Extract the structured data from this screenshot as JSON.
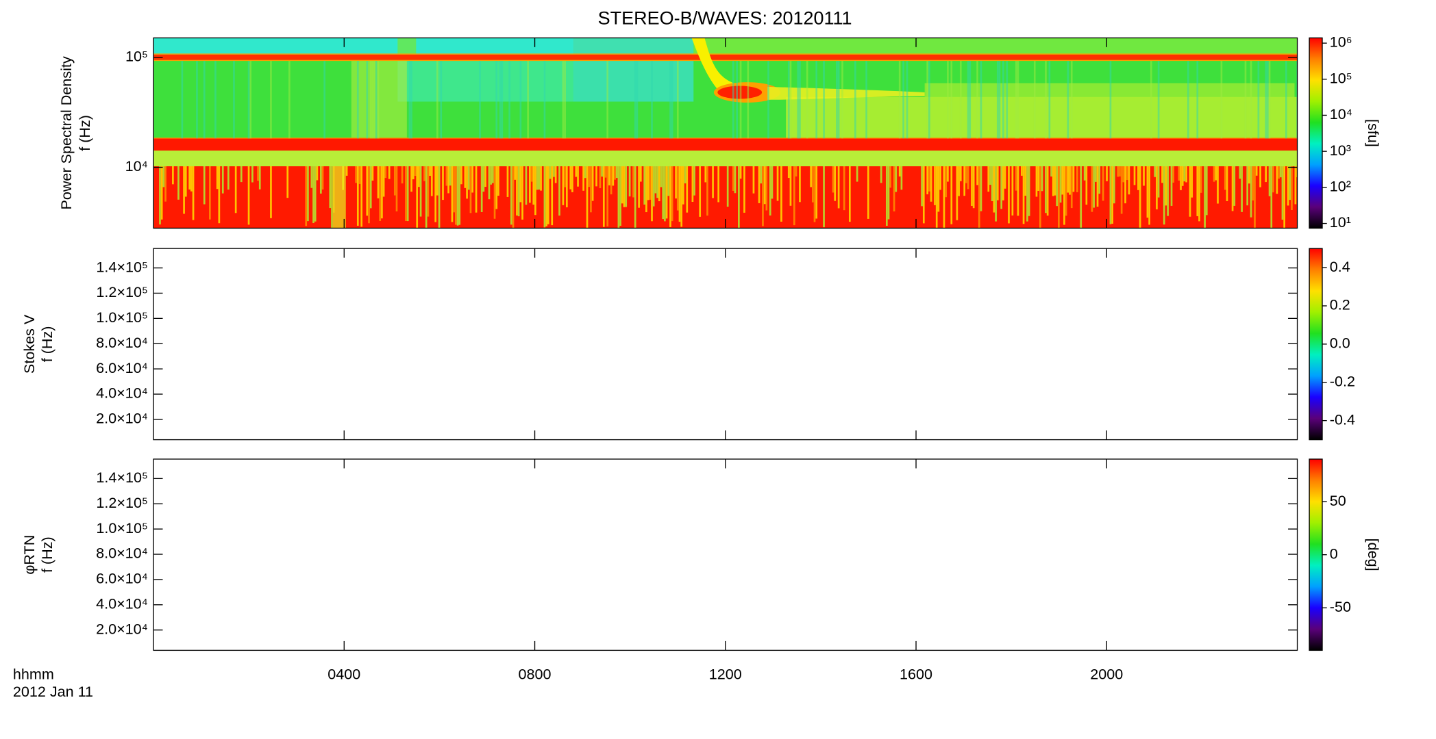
{
  "title": "STEREO-B/WAVES: 20120111",
  "time_label": "hhmm",
  "date_label": "2012 Jan 11",
  "time_axis": {
    "xlim": [
      0,
      24
    ],
    "xticks": [
      {
        "value": 4,
        "label": "0400"
      },
      {
        "value": 8,
        "label": "0800"
      },
      {
        "value": 12,
        "label": "1200"
      },
      {
        "value": 16,
        "label": "1600"
      },
      {
        "value": 20,
        "label": "2000"
      }
    ]
  },
  "colormap": [
    "#000000",
    "#5a007a",
    "#1a00ff",
    "#00a0ff",
    "#00f0c0",
    "#20e020",
    "#a0f000",
    "#ffe000",
    "#ff8000",
    "#ff0000"
  ],
  "chart_data": [
    {
      "type": "spectrogram",
      "ylabel": [
        "Power Spectral Density",
        "f (Hz)"
      ],
      "ylog": true,
      "ylim": [
        2800,
        150000
      ],
      "yticks": [
        {
          "value": 10000,
          "label": "10⁴"
        },
        {
          "value": 100000,
          "label": "10⁵"
        }
      ],
      "colorbar": {
        "log": true,
        "lim": [
          7.4,
          1400000
        ],
        "label": "[sfu]",
        "ticks": [
          {
            "value": 10,
            "label": "10¹"
          },
          {
            "value": 100,
            "label": "10²"
          },
          {
            "value": 1000,
            "label": "10³"
          },
          {
            "value": 10000,
            "label": "10⁴"
          },
          {
            "value": 100000,
            "label": "10⁵"
          },
          {
            "value": 1000000,
            "label": "10⁶"
          }
        ]
      }
    },
    {
      "type": "empty",
      "ylabel": [
        "Stokes V",
        "f (Hz)"
      ],
      "ylog": false,
      "ylim": [
        3900,
        155400
      ],
      "yticks": [
        {
          "value": 20000,
          "label": "2.0×10⁴"
        },
        {
          "value": 40000,
          "label": "4.0×10⁴"
        },
        {
          "value": 60000,
          "label": "6.0×10⁴"
        },
        {
          "value": 80000,
          "label": "8.0×10⁴"
        },
        {
          "value": 100000,
          "label": "1.0×10⁵"
        },
        {
          "value": 120000,
          "label": "1.2×10⁵"
        },
        {
          "value": 140000,
          "label": "1.4×10⁵"
        }
      ],
      "colorbar": {
        "log": false,
        "lim": [
          -0.5,
          0.5
        ],
        "ticks": [
          -0.4,
          -0.2,
          {
            "value": 0,
            "label": "0.0"
          },
          0.2,
          0.4
        ]
      }
    },
    {
      "type": "empty",
      "ylabel": [
        "φRTN",
        "f (Hz)"
      ],
      "ylog": false,
      "ylim": [
        3900,
        155400
      ],
      "yticks": [
        {
          "value": 20000,
          "label": "2.0×10⁴"
        },
        {
          "value": 40000,
          "label": "4.0×10⁴"
        },
        {
          "value": 60000,
          "label": "6.0×10⁴"
        },
        {
          "value": 80000,
          "label": "8.0×10⁴"
        },
        {
          "value": 100000,
          "label": "1.0×10⁵"
        },
        {
          "value": 120000,
          "label": "1.2×10⁵"
        },
        {
          "value": 140000,
          "label": "1.4×10⁵"
        }
      ],
      "colorbar": {
        "log": false,
        "lim": [
          -90,
          90
        ],
        "label": "[deg]",
        "ticks": [
          -50,
          0,
          50
        ]
      }
    }
  ]
}
